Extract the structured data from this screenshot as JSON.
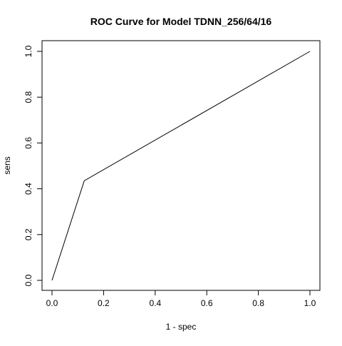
{
  "chart_data": {
    "type": "line",
    "title": "ROC Curve for Model TDNN_256/64/16",
    "xlabel": "1 - spec",
    "ylabel": "sens",
    "xlim": [
      0,
      1
    ],
    "ylim": [
      0,
      1
    ],
    "x_ticks": [
      "0.0",
      "0.2",
      "0.4",
      "0.6",
      "0.8",
      "1.0"
    ],
    "y_ticks": [
      "0.0",
      "0.2",
      "0.4",
      "0.6",
      "0.8",
      "1.0"
    ],
    "grid": false,
    "legend": "none",
    "series": [
      {
        "x": [
          0.0,
          0.125,
          1.0
        ],
        "y": [
          0.0,
          0.435,
          1.0
        ],
        "color": "#000000"
      }
    ]
  }
}
